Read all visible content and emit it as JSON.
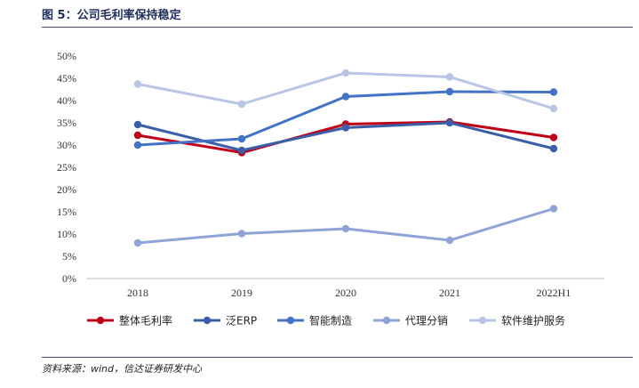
{
  "header": {
    "title": "图 5：公司毛利率保持稳定"
  },
  "footer": {
    "source": "资料来源：wind，信达证券研发中心"
  },
  "chart_data": {
    "type": "line",
    "categories": [
      "2018",
      "2019",
      "2020",
      "2021",
      "2022H1"
    ],
    "yticks": [
      "0%",
      "5%",
      "10%",
      "15%",
      "20%",
      "25%",
      "30%",
      "35%",
      "40%",
      "45%",
      "50%"
    ],
    "ylim": [
      0,
      50
    ],
    "grid": false,
    "legend_position": "bottom",
    "series": [
      {
        "name": "整体毛利率",
        "color": "#c00018",
        "values": [
          32.2,
          28.3,
          34.7,
          35.2,
          31.7
        ]
      },
      {
        "name": "泛ERP",
        "color": "#3a5fa8",
        "values": [
          34.6,
          28.8,
          33.9,
          35.0,
          29.2
        ]
      },
      {
        "name": "智能制造",
        "color": "#4472c4",
        "values": [
          30.0,
          31.4,
          40.9,
          42.0,
          41.9
        ]
      },
      {
        "name": "代理分销",
        "color": "#8fa4d6",
        "values": [
          8.0,
          10.1,
          11.2,
          8.6,
          15.7
        ]
      },
      {
        "name": "软件维护服务",
        "color": "#b8c5e4",
        "values": [
          43.7,
          39.2,
          46.2,
          45.3,
          38.2
        ]
      }
    ]
  }
}
